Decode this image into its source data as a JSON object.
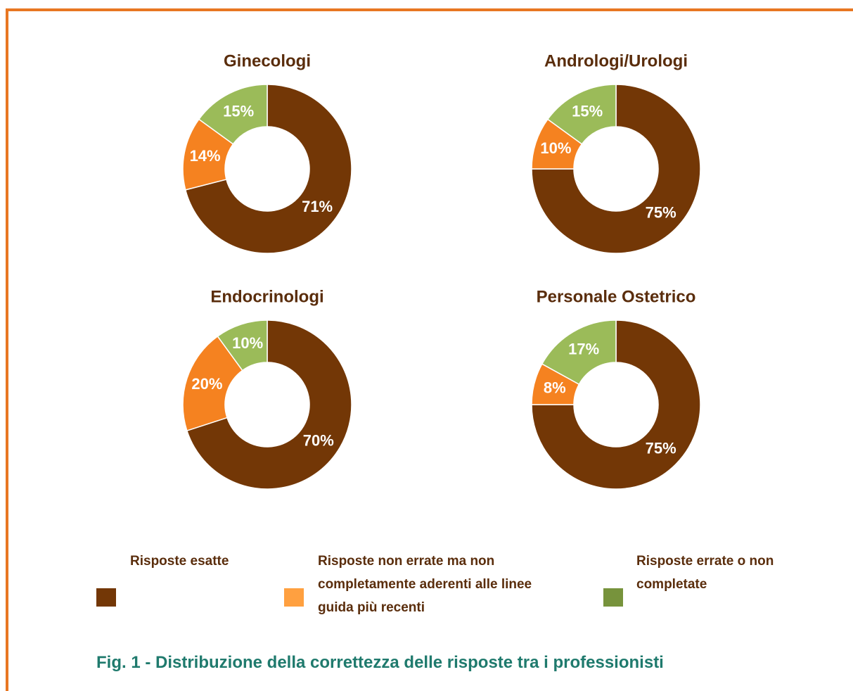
{
  "chart_data": [
    {
      "type": "pie",
      "donut": true,
      "title": "Ginecologi",
      "values": [
        71,
        14,
        15
      ],
      "value_labels": [
        "71%",
        "14%",
        "15%"
      ],
      "colors": [
        "#733706",
        "#f58220",
        "#9bbb59"
      ]
    },
    {
      "type": "pie",
      "donut": true,
      "title": "Andrologi/Urologi",
      "values": [
        75,
        10,
        15
      ],
      "value_labels": [
        "75%",
        "10%",
        "15%"
      ],
      "colors": [
        "#733706",
        "#f58220",
        "#9bbb59"
      ]
    },
    {
      "type": "pie",
      "donut": true,
      "title": "Endocrinologi",
      "values": [
        70,
        20,
        10
      ],
      "value_labels": [
        "70%",
        "20%",
        "10%"
      ],
      "colors": [
        "#733706",
        "#f58220",
        "#9bbb59"
      ]
    },
    {
      "type": "pie",
      "donut": true,
      "title": "Personale Ostetrico",
      "values": [
        75,
        8,
        17
      ],
      "value_labels": [
        "75%",
        "8%",
        "17%"
      ],
      "colors": [
        "#733706",
        "#f58220",
        "#9bbb59"
      ]
    }
  ],
  "legend": {
    "labels": [
      "Risposte esatte",
      "Risposte non errate ma non completamente aderenti alle linee guida più recenti",
      "Risposte errate o non completate"
    ],
    "colors": [
      "#733706",
      "#ffa040",
      "#77933c"
    ]
  },
  "caption": "Fig. 1 - Distribuzione della correttezza delle risposte tra i professionisti"
}
